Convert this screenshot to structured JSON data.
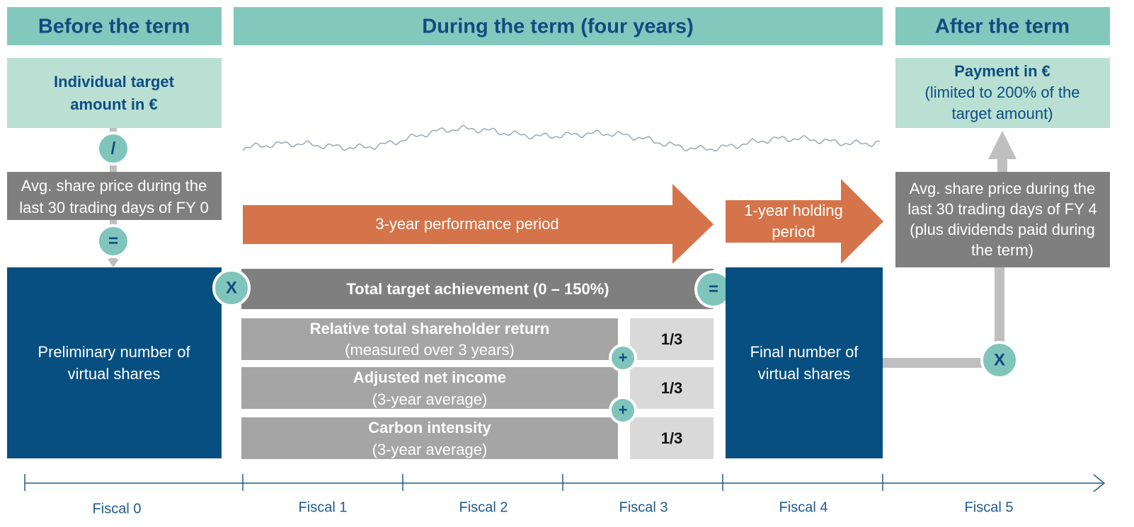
{
  "headers": [
    "Before the term",
    "During the term (four years)",
    "After the term"
  ],
  "before": {
    "target": [
      "Individual target",
      "amount in €"
    ],
    "divide": "/",
    "price": [
      "Avg. share price during the",
      "last 30 trading days of FY 0"
    ],
    "equals": "=",
    "preliminary": [
      "Preliminary number of",
      "virtual shares"
    ]
  },
  "during": {
    "multiply": "X",
    "performance": "3-year performance period",
    "holding": [
      "1-year holding",
      "period"
    ],
    "total": "Total target achievement (0 – 150%)",
    "equals": "=",
    "components": [
      {
        "name": "Relative total shareholder return",
        "detail": "(measured over 3 years)",
        "weight": "1/3"
      },
      {
        "name": "Adjusted net income",
        "detail": "(3-year average)",
        "weight": "1/3"
      },
      {
        "name": "Carbon intensity",
        "detail": "(3-year average)",
        "weight": "1/3"
      }
    ],
    "plus": [
      "+",
      "+"
    ],
    "final": [
      "Final number of",
      "virtual shares"
    ]
  },
  "after": {
    "payment": "Payment in €",
    "limit": [
      "(limited to 200% of the",
      "target amount)"
    ],
    "price": [
      "Avg. share price during the",
      "last 30 trading days of FY 4",
      "(plus dividends paid during",
      "the term)"
    ],
    "multiply": "X"
  },
  "timeline": [
    "Fiscal 0",
    "Fiscal 1",
    "Fiscal 2",
    "Fiscal 3",
    "Fiscal 4",
    "Fiscal 5"
  ]
}
